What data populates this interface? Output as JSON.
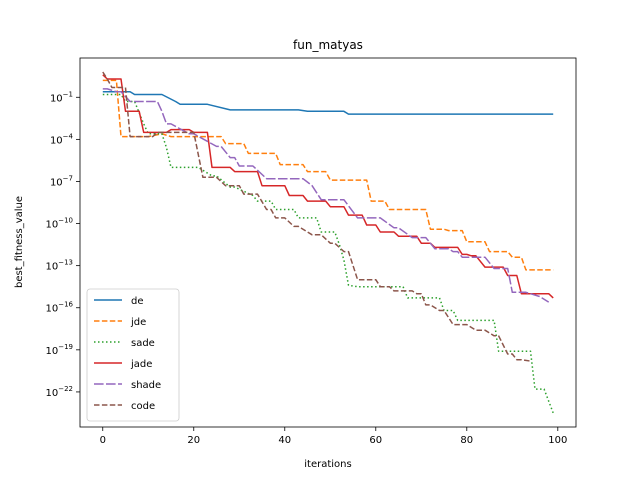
{
  "chart_data": {
    "type": "line",
    "title": "fun_matyas",
    "xlabel": "iterations",
    "ylabel": "best_fitness_value",
    "yscale": "log",
    "xlim": [
      -5,
      104
    ],
    "ylim_exponent": [
      -24.5,
      1.8
    ],
    "xticks": [
      0,
      20,
      40,
      60,
      80,
      100
    ],
    "xtick_labels": [
      "0",
      "20",
      "40",
      "60",
      "80",
      "100"
    ],
    "yticks_exponent": [
      -22,
      -19,
      -16,
      -13,
      -10,
      -7,
      -4,
      -1
    ],
    "ytick_labels": [
      "10^-22",
      "10^-19",
      "10^-16",
      "10^-13",
      "10^-10",
      "10^-7",
      "10^-4",
      "10^-1"
    ],
    "legend_position": "lower-left",
    "grid": false,
    "series": [
      {
        "name": "de",
        "color": "#1f77b4",
        "dash": "solid",
        "x": [
          0,
          6,
          7,
          13,
          16,
          17,
          23,
          28,
          33,
          38,
          43,
          45,
          49,
          53,
          54,
          60,
          70,
          80,
          90,
          99
        ],
        "y_exponent": [
          -0.6,
          -0.6,
          -0.8,
          -0.8,
          -1.3,
          -1.5,
          -1.5,
          -1.9,
          -1.9,
          -1.9,
          -1.9,
          -2.0,
          -2.0,
          -2.0,
          -2.2,
          -2.2,
          -2.2,
          -2.2,
          -2.2,
          -2.2
        ]
      },
      {
        "name": "jde",
        "color": "#ff7f0e",
        "dash": "dashed",
        "x": [
          0,
          3,
          4,
          10,
          13,
          15,
          26,
          27,
          31,
          32,
          38,
          39,
          44,
          45,
          49,
          50,
          58,
          59,
          62,
          63,
          71,
          72,
          75,
          76,
          79,
          80,
          84,
          85,
          89,
          90,
          92,
          93,
          99
        ],
        "y_exponent": [
          0.2,
          0.2,
          -3.8,
          -3.8,
          -3.6,
          -3.8,
          -3.8,
          -4.3,
          -4.3,
          -5.0,
          -5.0,
          -5.8,
          -5.8,
          -6.3,
          -6.3,
          -6.9,
          -6.9,
          -8.4,
          -8.4,
          -9.0,
          -9.0,
          -10.4,
          -10.4,
          -10.5,
          -10.5,
          -11.3,
          -11.3,
          -12.0,
          -12.0,
          -12.4,
          -12.4,
          -13.3,
          -13.3
        ]
      },
      {
        "name": "sade",
        "color": "#2ca02c",
        "dash": "dotted",
        "x": [
          0,
          4,
          5,
          7,
          9,
          10,
          13,
          14,
          15,
          21,
          24,
          25,
          28,
          29,
          33,
          34,
          37,
          38,
          42,
          43,
          47,
          48,
          51,
          52,
          53,
          54,
          56,
          62,
          66,
          67,
          74,
          75,
          77,
          78,
          86,
          87,
          94,
          95,
          97,
          99
        ],
        "y_exponent": [
          -0.8,
          -0.8,
          -1.3,
          -1.3,
          -2.9,
          -3.6,
          -3.6,
          -4.6,
          -6.0,
          -6.0,
          -6.6,
          -6.6,
          -7.4,
          -7.4,
          -8.0,
          -8.4,
          -8.4,
          -9.0,
          -9.0,
          -9.6,
          -9.6,
          -10.6,
          -10.6,
          -11.5,
          -12.6,
          -14.4,
          -14.5,
          -14.5,
          -14.5,
          -15.3,
          -15.3,
          -16.2,
          -16.2,
          -16.9,
          -16.9,
          -19.1,
          -19.1,
          -21.8,
          -21.8,
          -23.5
        ]
      },
      {
        "name": "jade",
        "color": "#d62728",
        "dash": "solid",
        "x": [
          0,
          1,
          4,
          5,
          8,
          9,
          14,
          15,
          19,
          20,
          23,
          24,
          28,
          29,
          34,
          35,
          40,
          41,
          44,
          45,
          49,
          50,
          53,
          54,
          57,
          58,
          60,
          61,
          64,
          65,
          69,
          70,
          72,
          73,
          78,
          79,
          80,
          81,
          82,
          84,
          88,
          89,
          91,
          92,
          98,
          99
        ],
        "y_exponent": [
          0.6,
          0.3,
          0.3,
          -2.0,
          -2.0,
          -3.5,
          -3.5,
          -3.3,
          -3.3,
          -3.5,
          -3.5,
          -6.0,
          -6.0,
          -6.3,
          -6.3,
          -7.3,
          -7.3,
          -8.0,
          -8.0,
          -8.4,
          -8.4,
          -8.8,
          -8.8,
          -9.4,
          -9.4,
          -10.1,
          -10.1,
          -10.6,
          -10.6,
          -10.9,
          -10.9,
          -11.4,
          -11.4,
          -11.7,
          -11.7,
          -12.2,
          -12.2,
          -12.3,
          -12.3,
          -13.1,
          -13.1,
          -13.7,
          -13.7,
          -15.0,
          -15.0,
          -15.3
        ]
      },
      {
        "name": "shade",
        "color": "#9467bd",
        "dash": "longdash",
        "x": [
          0,
          1,
          3,
          4,
          6,
          12,
          13,
          14,
          15,
          19,
          20,
          25,
          26,
          28,
          29,
          30,
          33,
          36,
          44,
          46,
          48,
          53,
          56,
          57,
          61,
          64,
          65,
          68,
          71,
          73,
          76,
          77,
          78,
          79,
          84,
          86,
          89,
          90,
          93,
          96,
          98
        ],
        "y_exponent": [
          -0.4,
          -0.4,
          -0.6,
          -0.6,
          -1.3,
          -1.3,
          -2.0,
          -2.9,
          -2.9,
          -3.6,
          -3.6,
          -4.5,
          -4.5,
          -5.3,
          -5.3,
          -5.9,
          -5.9,
          -6.8,
          -6.8,
          -7.3,
          -8.3,
          -8.3,
          -9.6,
          -9.6,
          -9.6,
          -10.3,
          -10.3,
          -11.0,
          -11.0,
          -11.8,
          -11.8,
          -12.0,
          -12.0,
          -12.4,
          -12.4,
          -13.2,
          -13.2,
          -14.9,
          -14.9,
          -15.2,
          -15.6
        ]
      },
      {
        "name": "code",
        "color": "#8c564b",
        "dash": "dashed",
        "x": [
          0,
          1,
          2,
          5,
          6,
          11,
          12,
          20,
          22,
          25,
          27,
          30,
          31,
          34,
          36,
          37,
          38,
          40,
          42,
          43,
          46,
          48,
          50,
          51,
          53,
          54,
          56,
          59,
          60,
          61,
          63,
          64,
          68,
          69,
          70,
          71,
          72,
          74,
          75,
          77,
          80,
          82,
          84,
          86,
          87,
          89,
          90,
          91,
          92,
          94
        ],
        "y_exponent": [
          0.8,
          0.3,
          -0.3,
          -0.3,
          -3.8,
          -3.8,
          -3.5,
          -3.5,
          -6.7,
          -6.7,
          -7.3,
          -7.3,
          -7.9,
          -7.9,
          -9.0,
          -9.0,
          -9.6,
          -9.6,
          -10.2,
          -10.2,
          -10.8,
          -10.8,
          -11.4,
          -11.4,
          -12.0,
          -12.0,
          -14.0,
          -14.0,
          -14.0,
          -14.5,
          -14.5,
          -14.8,
          -14.8,
          -15.0,
          -15.0,
          -15.8,
          -15.8,
          -16.2,
          -16.2,
          -17.2,
          -17.2,
          -17.6,
          -17.6,
          -18.0,
          -18.0,
          -19.3,
          -19.3,
          -19.7,
          -19.7,
          -19.8
        ]
      }
    ]
  }
}
